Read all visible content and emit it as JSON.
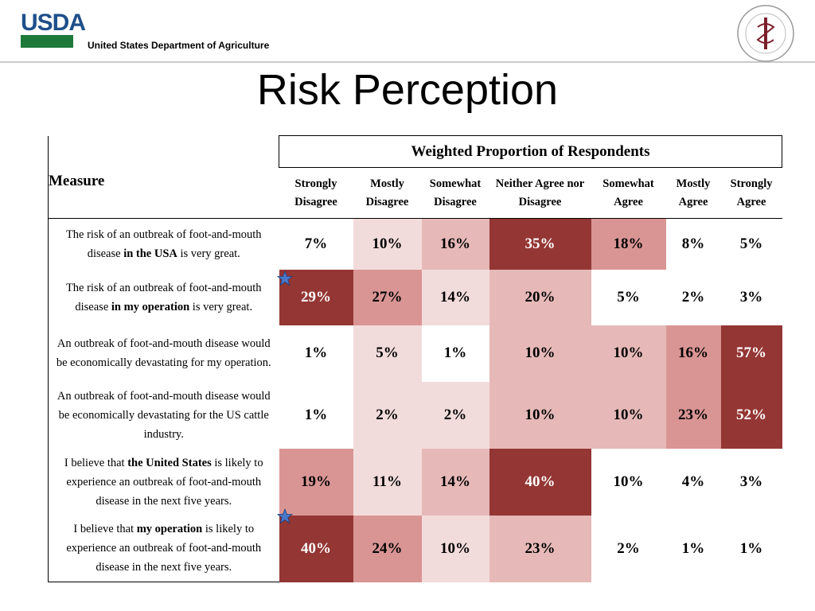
{
  "header": {
    "logo": "USDA",
    "agency": "United States Department of Agriculture"
  },
  "title": "Risk Perception",
  "table": {
    "group_header": "Weighted Proportion of Respondents",
    "measure_header": "Measure",
    "columns": [
      "Strongly Disagree",
      "Mostly Disagree",
      "Somewhat Disagree",
      "Neither Agree nor Disagree",
      "Somewhat Agree",
      "Mostly Agree",
      "Strongly Agree"
    ],
    "rows": [
      {
        "measure": [
          {
            "text": "The risk of an outbreak of foot-and-mouth disease "
          },
          {
            "text": "in the USA",
            "bold": true
          },
          {
            "text": " is very great."
          }
        ],
        "cells": [
          "7%",
          "10%",
          "16%",
          "35%",
          "18%",
          "8%",
          "5%"
        ],
        "colors": [
          "#ffffff",
          "#f2dcdb",
          "#e6b9b8",
          "#943634",
          "#d99594",
          "#ffffff",
          "#ffffff"
        ]
      },
      {
        "measure": [
          {
            "text": "The risk of an outbreak of foot-and-mouth disease "
          },
          {
            "text": "in my operation",
            "bold": true
          },
          {
            "text": " is very great."
          }
        ],
        "cells": [
          "29%",
          "27%",
          "14%",
          "20%",
          "5%",
          "2%",
          "3%"
        ],
        "colors": [
          "#943634",
          "#d99594",
          "#f2dcdb",
          "#e6b9b8",
          "#ffffff",
          "#ffffff",
          "#ffffff"
        ]
      },
      {
        "measure": [
          {
            "text": "An outbreak of foot-and-mouth disease would be economically devastating for my operation."
          }
        ],
        "cells": [
          "1%",
          "5%",
          "1%",
          "10%",
          "10%",
          "16%",
          "57%"
        ],
        "colors": [
          "#ffffff",
          "#f2dcdb",
          "#ffffff",
          "#e6b9b8",
          "#e6b9b8",
          "#d99594",
          "#943634"
        ]
      },
      {
        "measure": [
          {
            "text": "An outbreak of foot-and-mouth disease would be economically devastating for the US cattle industry."
          }
        ],
        "cells": [
          "1%",
          "2%",
          "2%",
          "10%",
          "10%",
          "23%",
          "52%"
        ],
        "colors": [
          "#ffffff",
          "#f2dcdb",
          "#f2dcdb",
          "#e6b9b8",
          "#e6b9b8",
          "#d99594",
          "#943634"
        ]
      },
      {
        "measure": [
          {
            "text": "I believe that "
          },
          {
            "text": "the United States",
            "bold": true
          },
          {
            "text": " is likely to experience an outbreak of foot-and-mouth disease in the next five years."
          }
        ],
        "cells": [
          "19%",
          "11%",
          "14%",
          "40%",
          "10%",
          "4%",
          "3%"
        ],
        "colors": [
          "#d99594",
          "#f2dcdb",
          "#e6b9b8",
          "#943634",
          "#ffffff",
          "#ffffff",
          "#ffffff"
        ]
      },
      {
        "measure": [
          {
            "text": "I believe that "
          },
          {
            "text": "my operation",
            "bold": true
          },
          {
            "text": " is likely to experience an outbreak of foot-and-mouth disease in the next five years."
          }
        ],
        "cells": [
          "40%",
          "24%",
          "10%",
          "23%",
          "2%",
          "1%",
          "1%"
        ],
        "colors": [
          "#943634",
          "#d99594",
          "#f2dcdb",
          "#e6b9b8",
          "#ffffff",
          "#ffffff",
          "#ffffff"
        ]
      }
    ]
  }
}
